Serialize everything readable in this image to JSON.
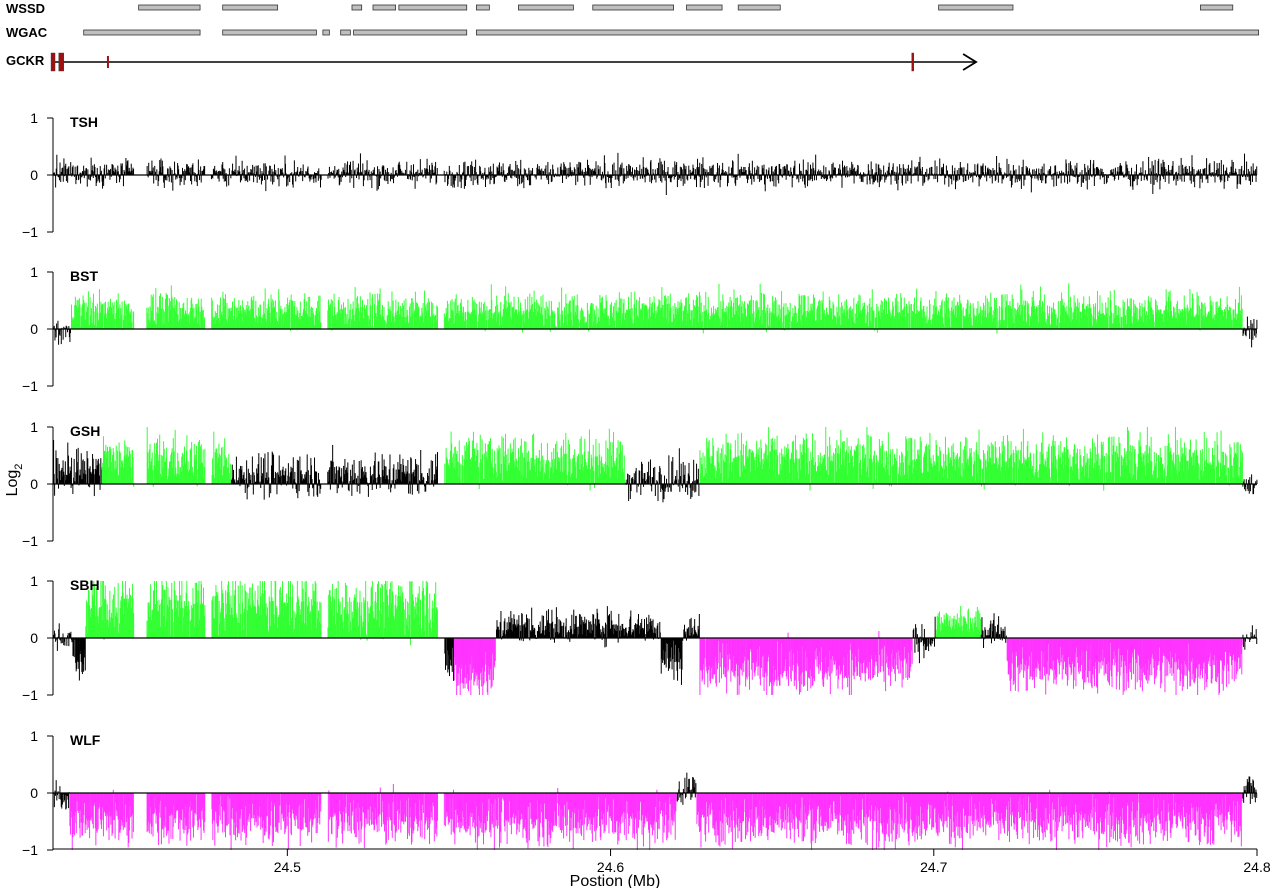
{
  "colors": {
    "neutral": "#000000",
    "gain": "#33ff33",
    "loss": "#ff33ff",
    "segment_fill": "#bfbfbf",
    "exon": "#a01010"
  },
  "tracks": {
    "wssd": {
      "label": "WSSD",
      "segments": [
        [
          24.454,
          24.473
        ],
        [
          24.48,
          24.497
        ],
        [
          24.52,
          24.523
        ],
        [
          24.5265,
          24.5335
        ],
        [
          24.5345,
          24.5555
        ],
        [
          24.5585,
          24.5625
        ],
        [
          24.5715,
          24.5885
        ],
        [
          24.5945,
          24.6195
        ],
        [
          24.6235,
          24.6345
        ],
        [
          24.6395,
          24.6525
        ],
        [
          24.7015,
          24.7245
        ],
        [
          24.7825,
          24.7925
        ]
      ]
    },
    "wgac": {
      "label": "WGAC",
      "segments": [
        [
          24.437,
          24.473
        ],
        [
          24.48,
          24.509
        ],
        [
          24.511,
          24.513
        ],
        [
          24.5165,
          24.5195
        ],
        [
          24.5205,
          24.5555
        ],
        [
          24.5585,
          24.8005
        ]
      ]
    },
    "gene": {
      "label": "GCKR",
      "start": 24.427,
      "end": 24.7035,
      "exons": [
        24.4272,
        24.4296,
        24.4445,
        24.6935
      ]
    }
  },
  "axis": {
    "x_ticks": [
      "24.5",
      "24.6",
      "24.7",
      "24.8"
    ],
    "y_ticks": [
      "1",
      "0",
      "−1"
    ],
    "xlabel": "Postion (Mb)",
    "ylabel_main": "Log",
    "ylabel_sub": "2"
  },
  "chart_data": {
    "type": "bar",
    "title": "",
    "xlabel": "Postion (Mb)",
    "ylabel": "Log2",
    "xlim": [
      24.4275,
      24.8
    ],
    "ylim": [
      -1,
      1
    ],
    "x_ticks": [
      24.5,
      24.6,
      24.7,
      24.8
    ],
    "y_ticks": [
      1,
      0,
      -1
    ],
    "probe_gaps": [
      [
        24.4525,
        24.4565
      ],
      [
        24.4745,
        24.4765
      ],
      [
        24.5105,
        24.5125
      ],
      [
        24.5465,
        24.5485
      ]
    ],
    "panels": [
      {
        "name": "TSH",
        "segments": [
          {
            "start": 24.4275,
            "end": 24.8,
            "state": "normal",
            "mean": 0.03,
            "sd": 0.12
          }
        ]
      },
      {
        "name": "BST",
        "segments": [
          {
            "start": 24.4275,
            "end": 24.433,
            "state": "normal",
            "mean": -0.05,
            "sd": 0.12
          },
          {
            "start": 24.433,
            "end": 24.7955,
            "state": "gain",
            "mean": 0.34,
            "sd": 0.16
          },
          {
            "start": 24.7955,
            "end": 24.8,
            "state": "normal",
            "mean": -0.02,
            "sd": 0.1
          }
        ]
      },
      {
        "name": "GSH",
        "segments": [
          {
            "start": 24.4275,
            "end": 24.4425,
            "state": "normal",
            "mean": 0.22,
            "sd": 0.2
          },
          {
            "start": 24.4425,
            "end": 24.4525,
            "state": "gain",
            "mean": 0.45,
            "sd": 0.22
          },
          {
            "start": 24.4525,
            "end": 24.4745,
            "state": "gain",
            "mean": 0.45,
            "sd": 0.22
          },
          {
            "start": 24.4765,
            "end": 24.4825,
            "state": "gain",
            "mean": 0.45,
            "sd": 0.22
          },
          {
            "start": 24.4825,
            "end": 24.5485,
            "state": "normal",
            "mean": 0.18,
            "sd": 0.2
          },
          {
            "start": 24.5485,
            "end": 24.6045,
            "state": "gain",
            "mean": 0.46,
            "sd": 0.22
          },
          {
            "start": 24.6045,
            "end": 24.6275,
            "state": "normal",
            "mean": 0.1,
            "sd": 0.18
          },
          {
            "start": 24.6275,
            "end": 24.7955,
            "state": "gain",
            "mean": 0.46,
            "sd": 0.22
          },
          {
            "start": 24.7955,
            "end": 24.8,
            "state": "normal",
            "mean": 0.0,
            "sd": 0.12
          }
        ]
      },
      {
        "name": "SBH",
        "segments": [
          {
            "start": 24.4275,
            "end": 24.4335,
            "state": "normal",
            "mean": 0.02,
            "sd": 0.1
          },
          {
            "start": 24.4335,
            "end": 24.4375,
            "state": "normal",
            "mean": -0.45,
            "sd": 0.2
          },
          {
            "start": 24.4375,
            "end": 24.5485,
            "state": "gain",
            "mean": 0.62,
            "sd": 0.28
          },
          {
            "start": 24.5485,
            "end": 24.5515,
            "state": "normal",
            "mean": -0.45,
            "sd": 0.2
          },
          {
            "start": 24.5515,
            "end": 24.5645,
            "state": "loss",
            "mean": -0.68,
            "sd": 0.22
          },
          {
            "start": 24.5645,
            "end": 24.6155,
            "state": "normal",
            "mean": 0.22,
            "sd": 0.15
          },
          {
            "start": 24.6155,
            "end": 24.6225,
            "state": "normal",
            "mean": -0.4,
            "sd": 0.25
          },
          {
            "start": 24.6225,
            "end": 24.6275,
            "state": "normal",
            "mean": 0.15,
            "sd": 0.12
          },
          {
            "start": 24.6275,
            "end": 24.6935,
            "state": "loss",
            "mean": -0.55,
            "sd": 0.22
          },
          {
            "start": 24.6935,
            "end": 24.7005,
            "state": "normal",
            "mean": -0.05,
            "sd": 0.15
          },
          {
            "start": 24.7005,
            "end": 24.7145,
            "state": "gain",
            "mean": 0.28,
            "sd": 0.12
          },
          {
            "start": 24.7145,
            "end": 24.7225,
            "state": "normal",
            "mean": 0.15,
            "sd": 0.12
          },
          {
            "start": 24.7225,
            "end": 24.7955,
            "state": "loss",
            "mean": -0.55,
            "sd": 0.22
          },
          {
            "start": 24.7955,
            "end": 24.8,
            "state": "normal",
            "mean": 0.02,
            "sd": 0.1
          }
        ]
      },
      {
        "name": "WLF",
        "segments": [
          {
            "start": 24.4275,
            "end": 24.4325,
            "state": "normal",
            "mean": -0.08,
            "sd": 0.12
          },
          {
            "start": 24.4325,
            "end": 24.6205,
            "state": "loss",
            "mean": -0.5,
            "sd": 0.22
          },
          {
            "start": 24.6205,
            "end": 24.6265,
            "state": "normal",
            "mean": 0.08,
            "sd": 0.15
          },
          {
            "start": 24.6265,
            "end": 24.7955,
            "state": "loss",
            "mean": -0.5,
            "sd": 0.22
          },
          {
            "start": 24.7955,
            "end": 24.8,
            "state": "normal",
            "mean": 0.05,
            "sd": 0.15
          }
        ]
      }
    ]
  }
}
